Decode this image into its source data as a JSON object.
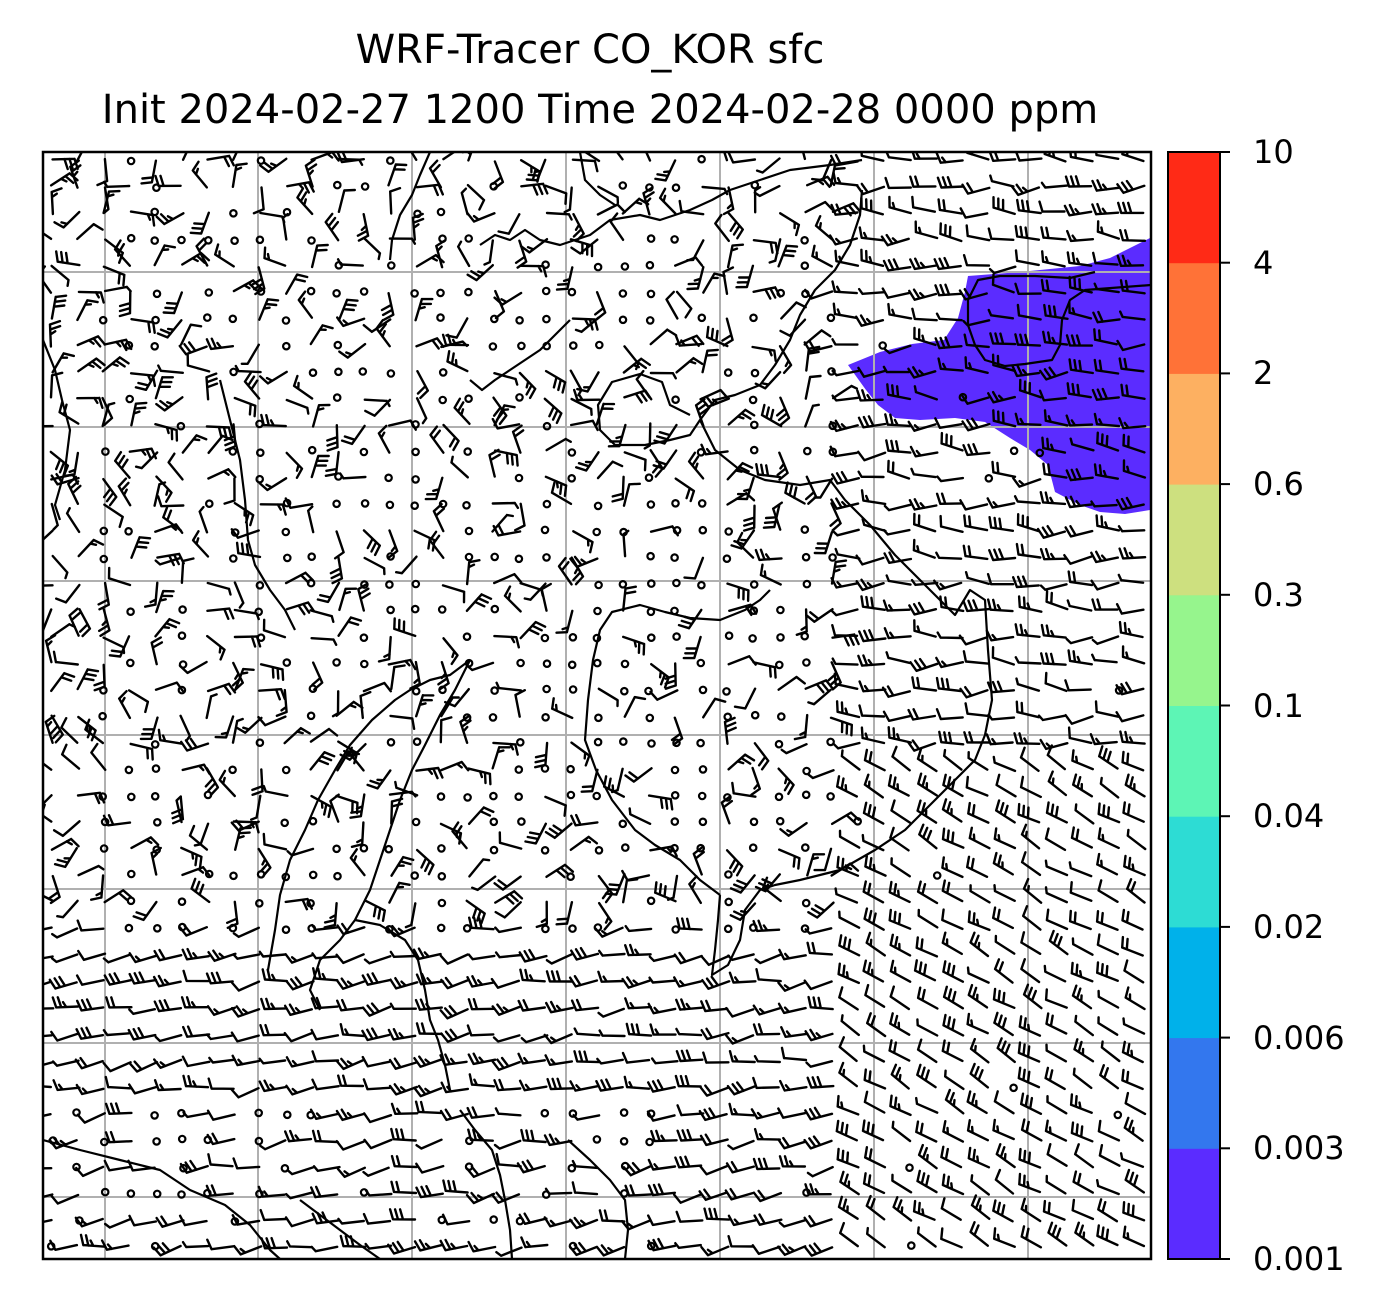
{
  "title": {
    "line1": "WRF-Tracer CO_KOR sfc",
    "line2": "Init 2024-02-27 1200 Time 2024-02-28 0000 ppm"
  },
  "map": {
    "variable": "CO_KOR tracer concentration",
    "units": "ppm",
    "level": "sfc",
    "overlay": "surface wind barbs",
    "gridlines": true,
    "plume": {
      "color": "#5b2cff",
      "location": "upper-right (Korean peninsula, Yellow Sea)",
      "level_range": [
        0.001,
        0.003
      ]
    }
  },
  "colorbar": {
    "levels": [
      "0.001",
      "0.003",
      "0.006",
      "0.02",
      "0.04",
      "0.1",
      "0.3",
      "0.6",
      "2",
      "4",
      "10"
    ],
    "colors": [
      "#5b2cff",
      "#3377ee",
      "#00b1ea",
      "#2ddcd4",
      "#5df5b5",
      "#96f58d",
      "#cde07f",
      "#fdb061",
      "#ff7237",
      "#ff2a16"
    ]
  }
}
